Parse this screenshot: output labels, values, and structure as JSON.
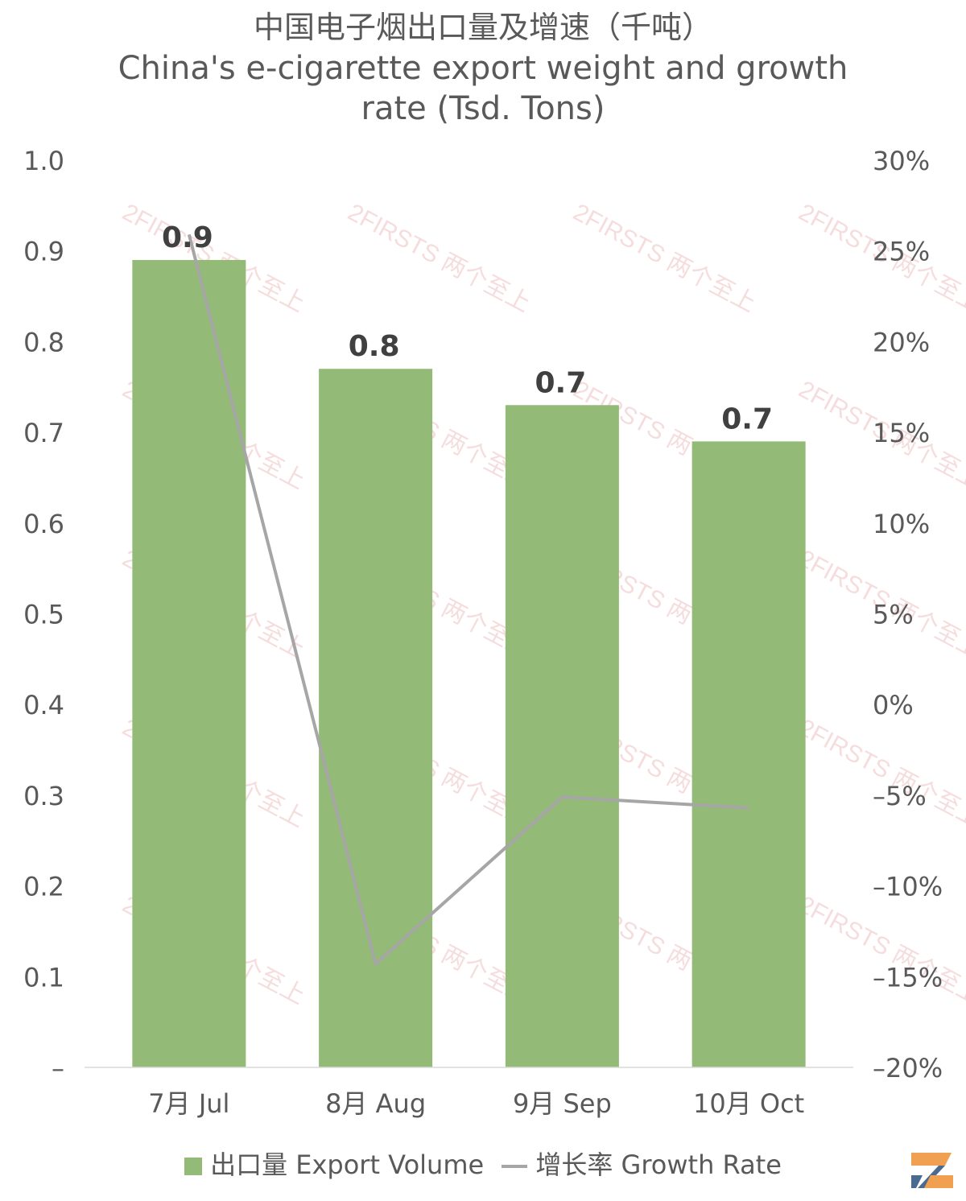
{
  "title": {
    "cn": "中国电子烟出口量及增速（千吨）",
    "en_line1": "China's e-cigarette export weight and growth",
    "en_line2": "rate (Tsd. Tons)"
  },
  "watermark_text": "2FIRSTS 两个至上",
  "legend": {
    "bar_label": "出口量 Export Volume",
    "line_label": "增长率 Growth Rate"
  },
  "colors": {
    "bar": "#93BA76",
    "line": "#A6A6A6",
    "text": "#595959",
    "data_label": "#404040",
    "watermark": "#E8A0A0",
    "logo_orange": "#F0A050",
    "logo_blue": "#4A6A90"
  },
  "chart_data": {
    "type": "bar",
    "categories": [
      "7月 Jul",
      "8月 Aug",
      "9月 Sep",
      "10月 Oct"
    ],
    "series": [
      {
        "name": "出口量 Export Volume",
        "type": "bar",
        "axis": "left",
        "values": [
          0.89,
          0.77,
          0.73,
          0.69
        ],
        "data_labels": [
          "0.9",
          "0.8",
          "0.7",
          "0.7"
        ]
      },
      {
        "name": "增长率 Growth Rate",
        "type": "line",
        "axis": "right",
        "values": [
          25.9,
          -14.3,
          -5.1,
          -5.7
        ]
      }
    ],
    "y_left": {
      "min": 0,
      "max": 1.0,
      "ticks": [
        0,
        0.1,
        0.2,
        0.3,
        0.4,
        0.5,
        0.6,
        0.7,
        0.8,
        0.9,
        1.0
      ],
      "tick_labels": [
        "–",
        "0.1",
        "0.2",
        "0.3",
        "0.4",
        "0.5",
        "0.6",
        "0.7",
        "0.8",
        "0.9",
        "1.0"
      ]
    },
    "y_right": {
      "min": -20,
      "max": 30,
      "ticks": [
        -20,
        -15,
        -10,
        -5,
        0,
        5,
        10,
        15,
        20,
        25,
        30
      ],
      "tick_labels": [
        "–20%",
        "–15%",
        "–10%",
        "–5%",
        "0%",
        "5%",
        "10%",
        "15%",
        "20%",
        "25%",
        "30%"
      ]
    },
    "grid": false,
    "legend_position": "bottom"
  }
}
